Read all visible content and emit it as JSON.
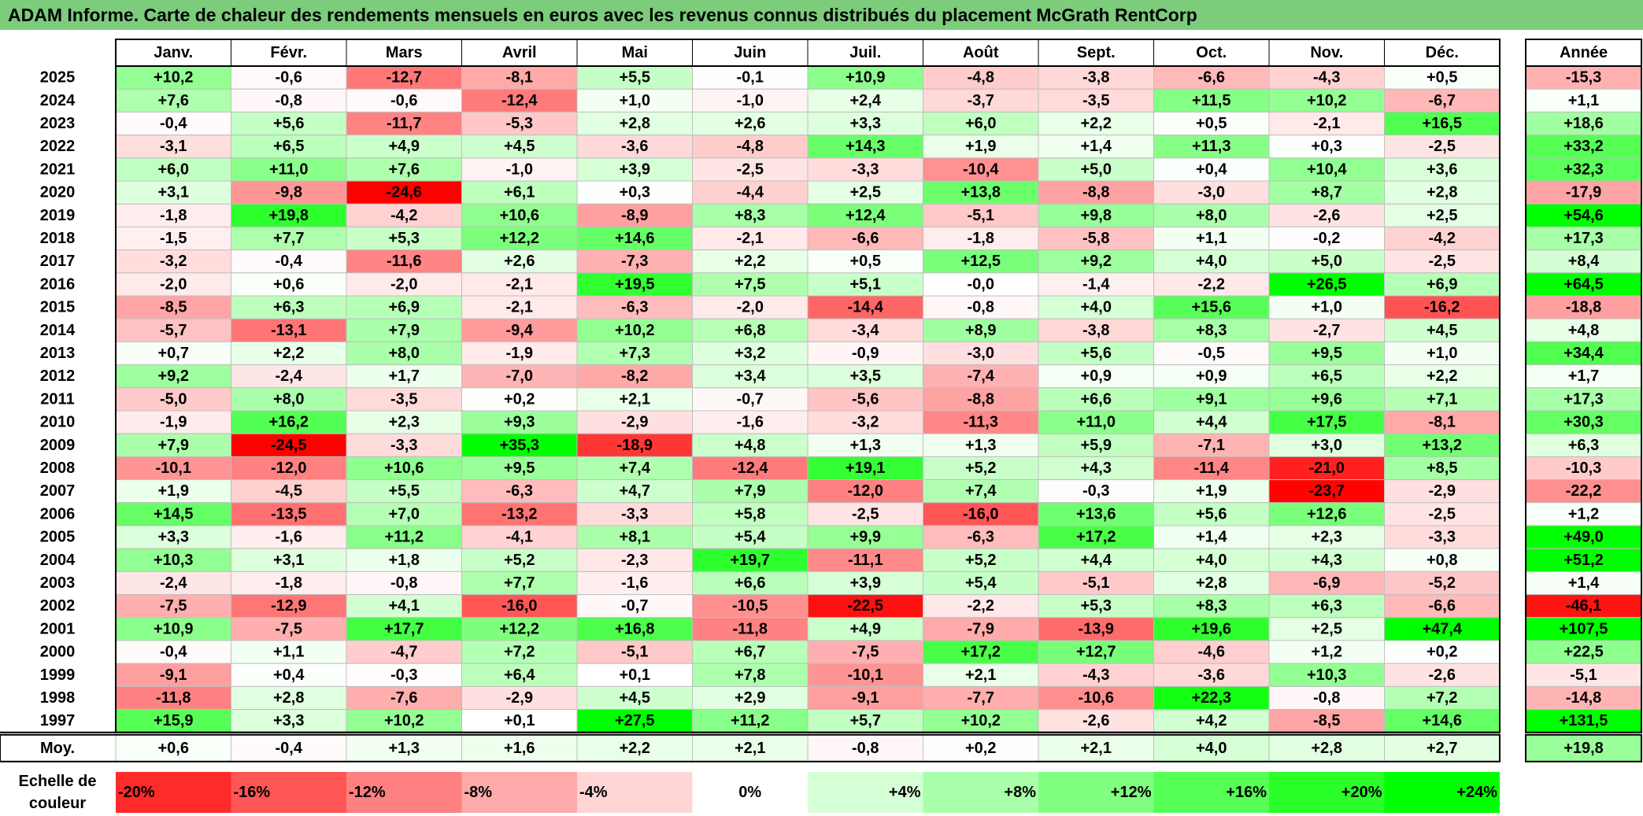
{
  "title": "ADAM Informe. Carte de chaleur des rendements mensuels en euros avec les revenus connus distribués du placement McGrath RentCorp",
  "chart_data": {
    "type": "heatmap",
    "months": [
      "Janv.",
      "Févr.",
      "Mars",
      "Avril",
      "Mai",
      "Juin",
      "Juil.",
      "Août",
      "Sept.",
      "Oct.",
      "Nov.",
      "Déc."
    ],
    "year_header": "Année",
    "rows": [
      {
        "year": "2025",
        "values": [
          "+10,2",
          "-0,6",
          "-12,7",
          "-8,1",
          "+5,5",
          "-0,1",
          "+10,9",
          "-4,8",
          "-3,8",
          "-6,6",
          "-4,3",
          "+0,5"
        ],
        "total": "-15,3"
      },
      {
        "year": "2024",
        "values": [
          "+7,6",
          "-0,8",
          "-0,6",
          "-12,4",
          "+1,0",
          "-1,0",
          "+2,4",
          "-3,7",
          "-3,5",
          "+11,5",
          "+10,2",
          "-6,7"
        ],
        "total": "+1,1"
      },
      {
        "year": "2023",
        "values": [
          "-0,4",
          "+5,6",
          "-11,7",
          "-5,3",
          "+2,8",
          "+2,6",
          "+3,3",
          "+6,0",
          "+2,2",
          "+0,5",
          "-2,1",
          "+16,5"
        ],
        "total": "+18,6"
      },
      {
        "year": "2022",
        "values": [
          "-3,1",
          "+6,5",
          "+4,9",
          "+4,5",
          "-3,6",
          "-4,8",
          "+14,3",
          "+1,9",
          "+1,4",
          "+11,3",
          "+0,3",
          "-2,5"
        ],
        "total": "+33,2"
      },
      {
        "year": "2021",
        "values": [
          "+6,0",
          "+11,0",
          "+7,6",
          "-1,0",
          "+3,9",
          "-2,5",
          "-3,3",
          "-10,4",
          "+5,0",
          "+0,4",
          "+10,4",
          "+3,6"
        ],
        "total": "+32,3"
      },
      {
        "year": "2020",
        "values": [
          "+3,1",
          "-9,8",
          "-24,6",
          "+6,1",
          "+0,3",
          "-4,4",
          "+2,5",
          "+13,8",
          "-8,8",
          "-3,0",
          "+8,7",
          "+2,8"
        ],
        "total": "-17,9"
      },
      {
        "year": "2019",
        "values": [
          "-1,8",
          "+19,8",
          "-4,2",
          "+10,6",
          "-8,9",
          "+8,3",
          "+12,4",
          "-5,1",
          "+9,8",
          "+8,0",
          "-2,6",
          "+2,5"
        ],
        "total": "+54,6"
      },
      {
        "year": "2018",
        "values": [
          "-1,5",
          "+7,7",
          "+5,3",
          "+12,2",
          "+14,6",
          "-2,1",
          "-6,6",
          "-1,8",
          "-5,8",
          "+1,1",
          "-0,2",
          "-4,2"
        ],
        "total": "+17,3"
      },
      {
        "year": "2017",
        "values": [
          "-3,2",
          "-0,4",
          "-11,6",
          "+2,6",
          "-7,3",
          "+2,2",
          "+0,5",
          "+12,5",
          "+9,2",
          "+4,0",
          "+5,0",
          "-2,5"
        ],
        "total": "+8,4"
      },
      {
        "year": "2016",
        "values": [
          "-2,0",
          "+0,6",
          "-2,0",
          "-2,1",
          "+19,5",
          "+7,5",
          "+5,1",
          "-0,0",
          "-1,4",
          "-2,2",
          "+26,5",
          "+6,9"
        ],
        "total": "+64,5"
      },
      {
        "year": "2015",
        "values": [
          "-8,5",
          "+6,3",
          "+6,9",
          "-2,1",
          "-6,3",
          "-2,0",
          "-14,4",
          "-0,8",
          "+4,0",
          "+15,6",
          "+1,0",
          "-16,2"
        ],
        "total": "-18,8"
      },
      {
        "year": "2014",
        "values": [
          "-5,7",
          "-13,1",
          "+7,9",
          "-9,4",
          "+10,2",
          "+6,8",
          "-3,4",
          "+8,9",
          "-3,8",
          "+8,3",
          "-2,7",
          "+4,5"
        ],
        "total": "+4,8"
      },
      {
        "year": "2013",
        "values": [
          "+0,7",
          "+2,2",
          "+8,0",
          "-1,9",
          "+7,3",
          "+3,2",
          "-0,9",
          "-3,0",
          "+5,6",
          "-0,5",
          "+9,5",
          "+1,0"
        ],
        "total": "+34,4"
      },
      {
        "year": "2012",
        "values": [
          "+9,2",
          "-2,4",
          "+1,7",
          "-7,0",
          "-8,2",
          "+3,4",
          "+3,5",
          "-7,4",
          "+0,9",
          "+0,9",
          "+6,5",
          "+2,2"
        ],
        "total": "+1,7"
      },
      {
        "year": "2011",
        "values": [
          "-5,0",
          "+8,0",
          "-3,5",
          "+0,2",
          "+2,1",
          "-0,7",
          "-5,6",
          "-8,8",
          "+6,6",
          "+9,1",
          "+9,6",
          "+7,1"
        ],
        "total": "+17,3"
      },
      {
        "year": "2010",
        "values": [
          "-1,9",
          "+16,2",
          "+2,3",
          "+9,3",
          "-2,9",
          "-1,6",
          "-3,2",
          "-11,3",
          "+11,0",
          "+4,4",
          "+17,5",
          "-8,1"
        ],
        "total": "+30,3"
      },
      {
        "year": "2009",
        "values": [
          "+7,9",
          "-24,5",
          "-3,3",
          "+35,3",
          "-18,9",
          "+4,8",
          "+1,3",
          "+1,3",
          "+5,9",
          "-7,1",
          "+3,0",
          "+13,2"
        ],
        "total": "+6,3"
      },
      {
        "year": "2008",
        "values": [
          "-10,1",
          "-12,0",
          "+10,6",
          "+9,5",
          "+7,4",
          "-12,4",
          "+19,1",
          "+5,2",
          "+4,3",
          "-11,4",
          "-21,0",
          "+8,5"
        ],
        "total": "-10,3"
      },
      {
        "year": "2007",
        "values": [
          "+1,9",
          "-4,5",
          "+5,5",
          "-6,3",
          "+4,7",
          "+7,9",
          "-12,0",
          "+7,4",
          "-0,3",
          "+1,9",
          "-23,7",
          "-2,9"
        ],
        "total": "-22,2"
      },
      {
        "year": "2006",
        "values": [
          "+14,5",
          "-13,5",
          "+7,0",
          "-13,2",
          "-3,3",
          "+5,8",
          "-2,5",
          "-16,0",
          "+13,6",
          "+5,6",
          "+12,6",
          "-2,5"
        ],
        "total": "+1,2"
      },
      {
        "year": "2005",
        "values": [
          "+3,3",
          "-1,6",
          "+11,2",
          "-4,1",
          "+8,1",
          "+5,4",
          "+9,9",
          "-6,3",
          "+17,2",
          "+1,4",
          "+2,3",
          "-3,3"
        ],
        "total": "+49,0"
      },
      {
        "year": "2004",
        "values": [
          "+10,3",
          "+3,1",
          "+1,8",
          "+5,2",
          "-2,3",
          "+19,7",
          "-11,1",
          "+5,2",
          "+4,4",
          "+4,0",
          "+4,3",
          "+0,8"
        ],
        "total": "+51,2"
      },
      {
        "year": "2003",
        "values": [
          "-2,4",
          "-1,8",
          "-0,8",
          "+7,7",
          "-1,6",
          "+6,6",
          "+3,9",
          "+5,4",
          "-5,1",
          "+2,8",
          "-6,9",
          "-5,2"
        ],
        "total": "+1,4"
      },
      {
        "year": "2002",
        "values": [
          "-7,5",
          "-12,9",
          "+4,1",
          "-16,0",
          "-0,7",
          "-10,5",
          "-22,5",
          "-2,2",
          "+5,3",
          "+8,3",
          "+6,3",
          "-6,6"
        ],
        "total": "-46,1"
      },
      {
        "year": "2001",
        "values": [
          "+10,9",
          "-7,5",
          "+17,7",
          "+12,2",
          "+16,8",
          "-11,8",
          "+4,9",
          "-7,9",
          "-13,9",
          "+19,6",
          "+2,5",
          "+47,4"
        ],
        "total": "+107,5"
      },
      {
        "year": "2000",
        "values": [
          "-0,4",
          "+1,1",
          "-4,7",
          "+7,2",
          "-5,1",
          "+6,7",
          "-7,5",
          "+17,2",
          "+12,7",
          "-4,6",
          "+1,2",
          "+0,2"
        ],
        "total": "+22,5"
      },
      {
        "year": "1999",
        "values": [
          "-9,1",
          "+0,4",
          "-0,3",
          "+6,4",
          "+0,1",
          "+7,8",
          "-10,1",
          "+2,1",
          "-4,3",
          "-3,6",
          "+10,3",
          "-2,6"
        ],
        "total": "-5,1"
      },
      {
        "year": "1998",
        "values": [
          "-11,8",
          "+2,8",
          "-7,6",
          "-2,9",
          "+4,5",
          "+2,9",
          "-9,1",
          "-7,7",
          "-10,6",
          "+22,3",
          "-0,8",
          "+7,2"
        ],
        "total": "-14,8"
      },
      {
        "year": "1997",
        "values": [
          "+15,9",
          "+3,3",
          "+10,2",
          "+0,1",
          "+27,5",
          "+11,2",
          "+5,7",
          "+10,2",
          "-2,6",
          "+4,2",
          "-8,5",
          "+14,6"
        ],
        "total": "+131,5"
      }
    ],
    "average": {
      "label": "Moy.",
      "values": [
        "+0,6",
        "-0,4",
        "+1,3",
        "+1,6",
        "+2,2",
        "+2,1",
        "-0,8",
        "+0,2",
        "+2,1",
        "+4,0",
        "+2,8",
        "+2,7"
      ],
      "total": "+19,8"
    },
    "scale": {
      "label_line1": "Echelle de",
      "label_line2": "couleur",
      "stops": [
        {
          "value": -20,
          "label": "-20%"
        },
        {
          "value": -16,
          "label": "-16%"
        },
        {
          "value": -12,
          "label": "-12%"
        },
        {
          "value": -8,
          "label": "-8%"
        },
        {
          "value": -4,
          "label": "-4%"
        },
        {
          "value": 0,
          "label": "0%"
        },
        {
          "value": 4,
          "label": "+4%"
        },
        {
          "value": 8,
          "label": "+8%"
        },
        {
          "value": 12,
          "label": "+12%"
        },
        {
          "value": 16,
          "label": "+16%"
        },
        {
          "value": 20,
          "label": "+20%"
        },
        {
          "value": 24,
          "label": "+24%"
        }
      ]
    },
    "colors": {
      "negative_max": "#ff0000",
      "neutral": "#ffffff",
      "positive_max": "#00ff00",
      "title_bar": "#7ccc7c"
    }
  }
}
